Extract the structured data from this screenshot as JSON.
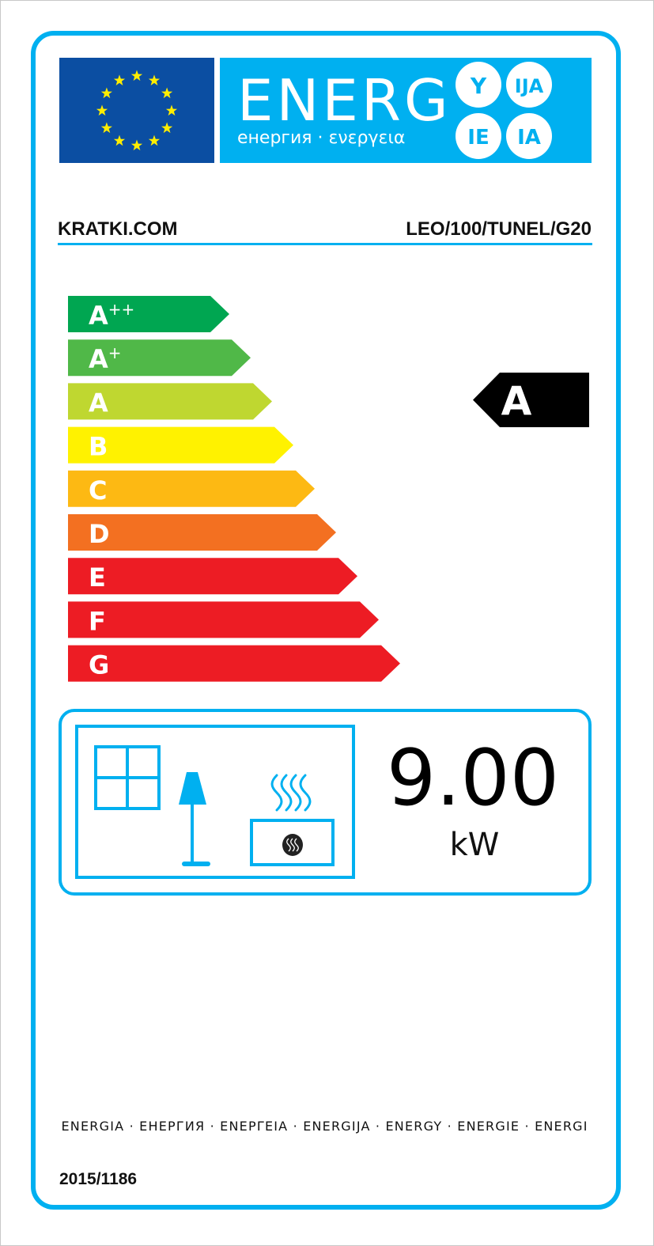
{
  "header": {
    "energy_word": "ENERG",
    "subtitle": "енергия · ενεργεια",
    "suffixes": [
      "Y",
      "IJA",
      "IE",
      "IA"
    ],
    "flag_name": "EU flag"
  },
  "supplier": "KRATKI.COM",
  "model": "LEO/100/TUNEL/G20",
  "scale": [
    {
      "label": "A",
      "sup": "++",
      "color": "#00a651"
    },
    {
      "label": "A",
      "sup": "+",
      "color": "#50b848"
    },
    {
      "label": "A",
      "sup": "",
      "color": "#bfd730"
    },
    {
      "label": "B",
      "sup": "",
      "color": "#fff200"
    },
    {
      "label": "C",
      "sup": "",
      "color": "#fdb913"
    },
    {
      "label": "D",
      "sup": "",
      "color": "#f37021"
    },
    {
      "label": "E",
      "sup": "",
      "color": "#ed1c24"
    },
    {
      "label": "F",
      "sup": "",
      "color": "#ed1c24"
    },
    {
      "label": "G",
      "sup": "",
      "color": "#ed1c24"
    }
  ],
  "rating": {
    "class": "A",
    "index": 2
  },
  "power": {
    "value": "9.00",
    "unit": "kW",
    "icons": [
      "window-icon",
      "lamp-icon",
      "heater-icon"
    ]
  },
  "footer": {
    "languages": "ENERGIA · ЕНЕРГИЯ · ΕΝΕΡΓΕΙΑ · ENERGIJA · ENERGY · ENERGIE · ENERGI",
    "regulation": "2015/1186"
  },
  "colors": {
    "brand_blue": "#00b0f0",
    "flag_blue": "#0b4ea2",
    "star_yellow": "#ffed00",
    "rating_black": "#000000"
  }
}
